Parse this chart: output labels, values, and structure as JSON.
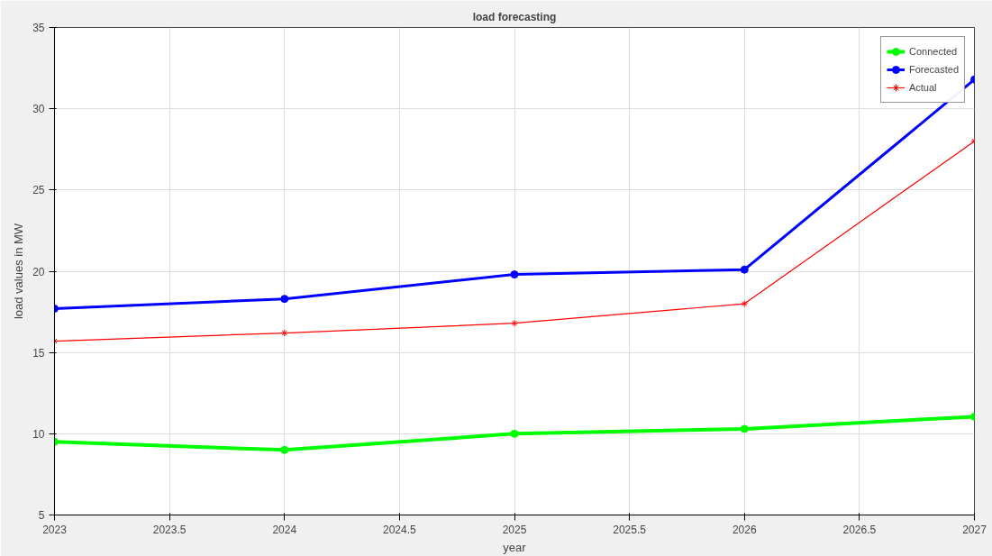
{
  "chart_data": {
    "type": "line",
    "title": "load forecasting",
    "xlabel": "year",
    "ylabel": "load values in MW",
    "x": [
      2023,
      2024,
      2025,
      2026,
      2027
    ],
    "series": [
      {
        "name": "Connected",
        "color": "#00ff00",
        "marker": "circle",
        "values": [
          9.5,
          9.0,
          10.0,
          10.3,
          11.05
        ]
      },
      {
        "name": "Forecasted",
        "color": "#0000ff",
        "marker": "circle",
        "values": [
          17.7,
          18.3,
          19.8,
          20.1,
          31.8
        ]
      },
      {
        "name": "Actual",
        "color": "#ff0000",
        "marker": "cross",
        "values": [
          15.7,
          16.2,
          16.8,
          18.0,
          28.0
        ]
      }
    ],
    "xlim": [
      2023,
      2027
    ],
    "xticks": [
      2023,
      2023.5,
      2024,
      2024.5,
      2025,
      2025.5,
      2026,
      2026.5,
      2027
    ],
    "ylim": [
      5,
      35
    ],
    "yticks": [
      5,
      10,
      15,
      20,
      25,
      30,
      35
    ],
    "grid": true,
    "legend": "top right",
    "line_style": "solid"
  }
}
